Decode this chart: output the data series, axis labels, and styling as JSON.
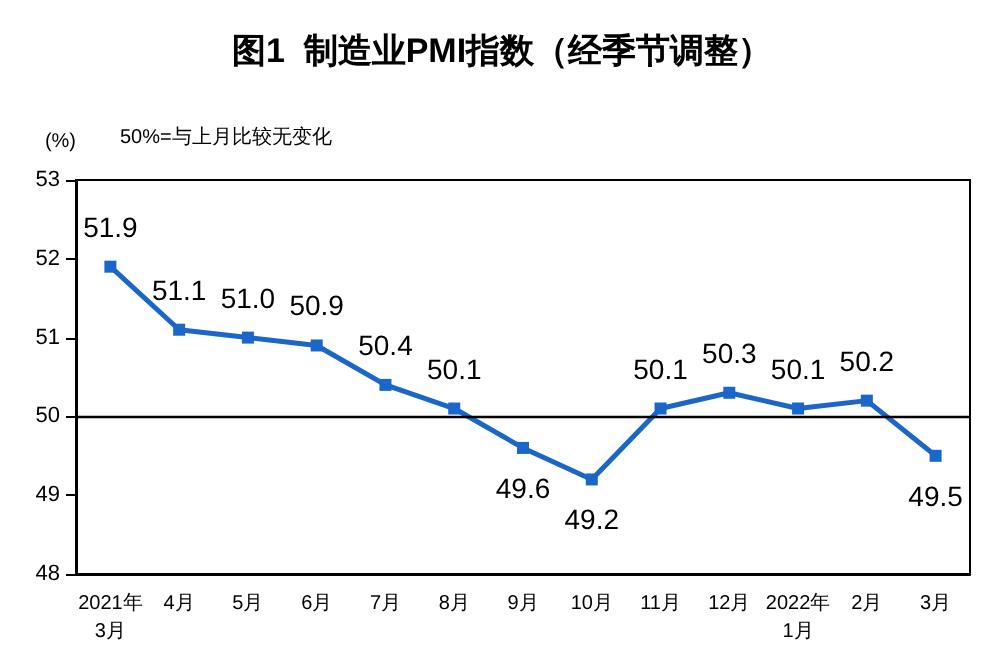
{
  "chart_data": {
    "type": "line",
    "title": "图1  制造业PMI指数（经季节调整）",
    "ylabel": "(%)",
    "annotations": [
      "50%=与上月比较无变化"
    ],
    "categories": [
      "2021年\n3月",
      "4月",
      "5月",
      "6月",
      "7月",
      "8月",
      "9月",
      "10月",
      "11月",
      "12月",
      "2022年\n1月",
      "2月",
      "3月"
    ],
    "series": [
      {
        "color": "#1a66c9",
        "values": [
          51.9,
          51.1,
          51.0,
          50.9,
          50.4,
          50.1,
          49.6,
          49.2,
          50.1,
          50.3,
          50.1,
          50.2,
          49.5
        ],
        "value_labels": [
          "51.9",
          "51.1",
          "51.0",
          "50.9",
          "50.4",
          "50.1",
          "49.6",
          "49.2",
          "50.1",
          "50.3",
          "50.1",
          "50.2",
          "49.5"
        ]
      }
    ],
    "ylim": [
      48,
      53
    ],
    "yticks": [
      48,
      49,
      50,
      51,
      52,
      53
    ],
    "ref_lines": [
      {
        "axis": "y",
        "value": 50,
        "color": "#000000"
      }
    ],
    "grid": false,
    "marker": "square",
    "line_style": "solid"
  }
}
